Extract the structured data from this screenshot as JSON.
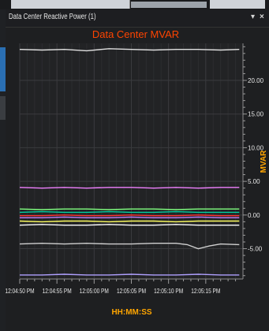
{
  "panel": {
    "title": "Data Center Reactive Power (1)",
    "menu_icon": "dropdown-arrow-icon",
    "close_icon": "close-icon",
    "close_glyph": "×",
    "menu_glyph": "▾"
  },
  "chart_data": {
    "type": "line",
    "title": "Data Center MVAR",
    "xlabel": "HH:MM:SS",
    "ylabel": "MVAR",
    "ylim": [
      -9.5,
      25.5
    ],
    "yticks": [
      {
        "value": 20,
        "label": "20.00"
      },
      {
        "value": 15,
        "label": "15.00"
      },
      {
        "value": 10,
        "label": "10.00"
      },
      {
        "value": 5,
        "label": "5.00"
      },
      {
        "value": 0,
        "label": "0.00"
      },
      {
        "value": -5,
        "label": "-5.00"
      }
    ],
    "x_range": [
      0,
      30
    ],
    "xticks": [
      {
        "t": 0,
        "label": "12:04:50 PM"
      },
      {
        "t": 5,
        "label": "12:04:55 PM"
      },
      {
        "t": 10,
        "label": "12:05:00 PM"
      },
      {
        "t": 15,
        "label": "12:05:05 PM"
      },
      {
        "t": 20,
        "label": "12:05:10 PM"
      },
      {
        "t": 25,
        "label": "12:05:15 PM"
      }
    ],
    "grid": true,
    "background": "#1e1f21",
    "title_color": "#ff4400",
    "axis_label_color": "#ffa500",
    "tick_label_color": "#e6e6e6",
    "series": [
      {
        "color": "#e0e0e0",
        "x": [
          0,
          3,
          6,
          9,
          12,
          15,
          18,
          21,
          24,
          27,
          29.5
        ],
        "values": [
          24.6,
          24.5,
          24.6,
          24.4,
          24.7,
          24.6,
          24.5,
          24.6,
          24.6,
          24.5,
          24.6
        ]
      },
      {
        "color": "#f080ff",
        "x": [
          0,
          3,
          6,
          9,
          12,
          15,
          18,
          21,
          24,
          27,
          29.5
        ],
        "values": [
          4.1,
          4.0,
          4.1,
          4.0,
          4.1,
          4.1,
          4.0,
          4.1,
          4.0,
          4.1,
          4.1
        ]
      },
      {
        "color": "#80ff80",
        "x": [
          0,
          3,
          6,
          9,
          12,
          15,
          18,
          21,
          24,
          27,
          29.5
        ],
        "values": [
          0.9,
          0.8,
          0.9,
          0.9,
          0.8,
          0.9,
          0.9,
          0.8,
          0.9,
          0.9,
          0.9
        ]
      },
      {
        "color": "#00d0a0",
        "x": [
          0,
          3,
          6,
          9,
          12,
          15,
          18,
          21,
          24,
          27,
          29.5
        ],
        "values": [
          0.4,
          0.5,
          0.4,
          0.4,
          0.5,
          0.4,
          0.4,
          0.5,
          0.4,
          0.4,
          0.4
        ]
      },
      {
        "color": "#ff3030",
        "x": [
          0,
          3,
          6,
          9,
          12,
          15,
          18,
          21,
          24,
          27,
          29.5
        ],
        "values": [
          -0.1,
          -0.1,
          0.0,
          -0.1,
          -0.1,
          0.0,
          -0.1,
          -0.1,
          0.0,
          -0.1,
          -0.1
        ]
      },
      {
        "color": "#c080ff",
        "x": [
          0,
          3,
          6,
          9,
          12,
          15,
          18,
          21,
          24,
          27,
          29.5
        ],
        "values": [
          -0.4,
          -0.4,
          -0.3,
          -0.4,
          -0.4,
          -0.3,
          -0.4,
          -0.4,
          -0.3,
          -0.4,
          -0.4
        ]
      },
      {
        "color": "#ffff60",
        "x": [
          0,
          3,
          6,
          9,
          12,
          15,
          18,
          21,
          24,
          27,
          29.5
        ],
        "values": [
          -0.9,
          -1.0,
          -0.9,
          -0.9,
          -1.0,
          -0.9,
          -0.9,
          -1.0,
          -0.9,
          -0.9,
          -0.9
        ]
      },
      {
        "color": "#ffffff",
        "x": [
          0,
          3,
          6,
          9,
          12,
          15,
          18,
          21,
          24,
          27,
          29.5
        ],
        "values": [
          -1.5,
          -1.4,
          -1.5,
          -1.5,
          -1.4,
          -1.5,
          -1.5,
          -1.4,
          -1.5,
          -1.5,
          -1.5
        ]
      },
      {
        "color": "#d0d0d0",
        "x": [
          0,
          3,
          6,
          9,
          12,
          15,
          18,
          21,
          22.5,
          24,
          25.5,
          27,
          29.5
        ],
        "values": [
          -4.3,
          -4.2,
          -4.3,
          -4.2,
          -4.3,
          -4.3,
          -4.2,
          -4.2,
          -4.4,
          -5.0,
          -4.6,
          -4.3,
          -4.4
        ]
      },
      {
        "color": "#b0a0ff",
        "x": [
          0,
          3,
          6,
          9,
          12,
          15,
          18,
          21,
          24,
          27,
          29.5
        ],
        "values": [
          -8.9,
          -8.9,
          -8.8,
          -8.9,
          -8.9,
          -8.8,
          -8.9,
          -8.9,
          -8.8,
          -8.9,
          -8.9
        ]
      }
    ]
  }
}
